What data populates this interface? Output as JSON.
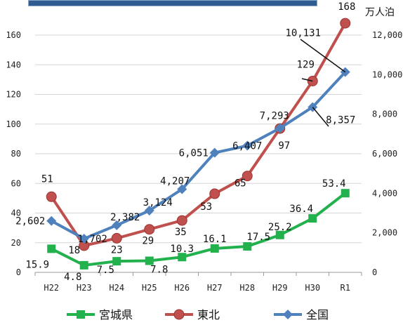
{
  "chart_data": {
    "type": "line",
    "categories": [
      "H22",
      "H23",
      "H24",
      "H25",
      "H26",
      "H27",
      "H28",
      "H29",
      "H30",
      "R1"
    ],
    "y_left": {
      "ylim": [
        0,
        160
      ],
      "ticks": [
        0,
        20,
        40,
        60,
        80,
        100,
        120,
        140,
        160
      ]
    },
    "y_right": {
      "ylim": [
        0,
        12000
      ],
      "ticks": [
        "0",
        "2,000",
        "4,000",
        "6,000",
        "8,000",
        "10,000",
        "12,000"
      ],
      "unit": "万人泊"
    },
    "grid": true,
    "legend_position": "bottom",
    "series": [
      {
        "name": "宮城県",
        "axis": "left",
        "color": "#22b14c",
        "marker": "square",
        "values": [
          15.9,
          4.8,
          7.5,
          7.8,
          10.3,
          16.1,
          17.5,
          25.2,
          36.4,
          53.4
        ],
        "labels": [
          "15.9",
          "4.8",
          "7.5",
          "7.8",
          "10.3",
          "16.1",
          "17.5",
          "25.2",
          "36.4",
          "53.4"
        ]
      },
      {
        "name": "東北",
        "axis": "left",
        "color": "#c0504d",
        "marker": "circle",
        "values": [
          51,
          18,
          23,
          29,
          35,
          53,
          65,
          97,
          129,
          168
        ],
        "labels": [
          "51",
          "18",
          "23",
          "29",
          "35",
          "53",
          "65",
          "97",
          "129",
          "168"
        ]
      },
      {
        "name": "全国",
        "axis": "right",
        "color": "#4f81bd",
        "marker": "diamond",
        "values": [
          2602,
          1702,
          2382,
          3124,
          4207,
          6051,
          6407,
          7293,
          8357,
          10131
        ],
        "labels": [
          "2,602",
          "1,702",
          "2,382",
          "3,124",
          "4,207",
          "6,051",
          "6,407",
          "7,293",
          "8,357",
          "10,131"
        ]
      }
    ]
  }
}
